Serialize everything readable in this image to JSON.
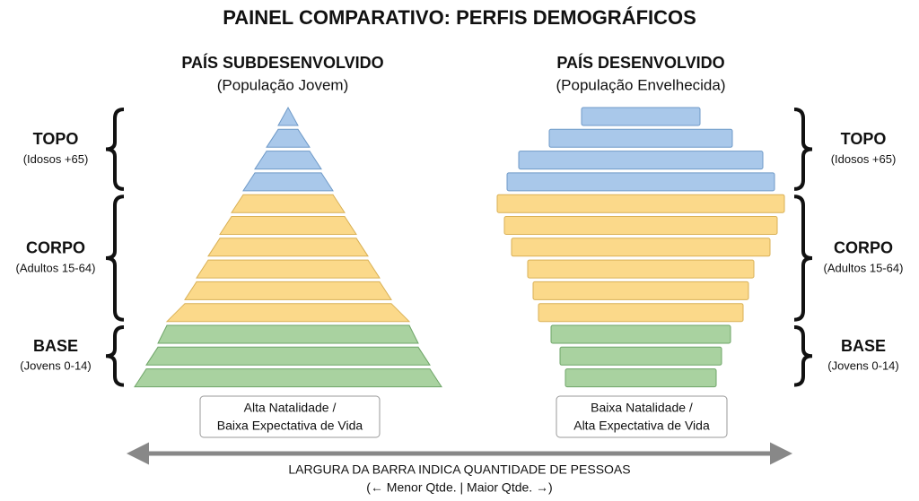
{
  "title": "PAINEL COMPARATIVO: PERFIS DEMOGRÁFICOS",
  "groups": [
    {
      "name": "TOPO",
      "detail": "(Idosos +65)",
      "color": "#a9c8ea",
      "stroke": "#6f9ac8"
    },
    {
      "name": "CORPO",
      "detail": "(Adultos 15-64)",
      "color": "#fbd98a",
      "stroke": "#d9b055"
    },
    {
      "name": "BASE",
      "detail": "(Jovens 0-14)",
      "color": "#a9d2a0",
      "stroke": "#6fa568"
    }
  ],
  "left": {
    "title": "PAÍS SUBDESENVOLVIDO",
    "subtitle": "(População Jovem)",
    "note": [
      "Alta Natalidade /",
      "Baixa Expectativa de Vida"
    ],
    "bars": [
      [
        22,
        48,
        74,
        100
      ],
      [
        126,
        152,
        178,
        204,
        230,
        270
      ],
      [
        290,
        316,
        342
      ]
    ]
  },
  "right": {
    "title": "PAÍS DESENVOLVIDO",
    "subtitle": "(População Envelhecida)",
    "note": [
      "Baixa Natalidade /",
      "Alta Expectativa de Vida"
    ],
    "bars": [
      [
        132,
        204,
        272,
        298
      ],
      [
        320,
        304,
        288,
        252,
        240,
        228
      ],
      [
        200,
        180,
        168
      ]
    ]
  },
  "footer": [
    "LARGURA DA BARRA INDICA QUANTIDADE DE PESSOAS",
    "(← Menor Qtde. | Maior Qtde. →)"
  ]
}
